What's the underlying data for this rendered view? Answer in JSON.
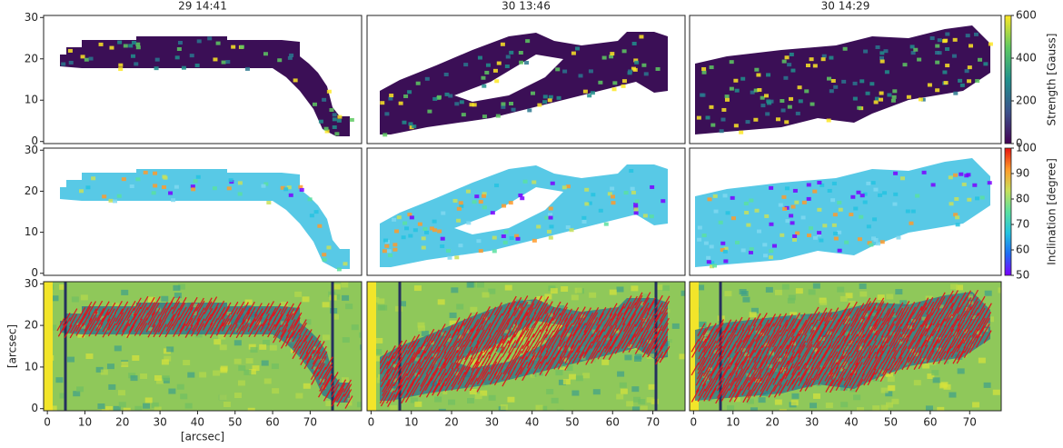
{
  "chart_data": [
    {
      "type": "heatmap",
      "title": "29 14:41",
      "ylim": [
        -0.5,
        30.5
      ],
      "yticks": [
        0,
        10,
        20,
        30
      ]
    },
    {
      "type": "heatmap",
      "title": "30 13:46"
    },
    {
      "type": "heatmap",
      "title": "30 14:29",
      "colorbar": {
        "label": "Strength [Gauss]",
        "lim": [
          0,
          600
        ],
        "ticks": [
          0,
          200,
          400,
          600
        ],
        "colors": [
          "#440154",
          "#3b528b",
          "#21918c",
          "#5ec962",
          "#fde725"
        ]
      }
    },
    {
      "type": "heatmap",
      "ylim": [
        -0.5,
        30.5
      ],
      "yticks": [
        0,
        10,
        20,
        30
      ]
    },
    {
      "type": "heatmap"
    },
    {
      "type": "heatmap",
      "colorbar": {
        "label": "Inclination [degree]",
        "lim": [
          50,
          100
        ],
        "ticks": [
          50,
          60,
          70,
          80,
          90,
          100
        ],
        "colors": [
          "#7b00ff",
          "#1f6cf5",
          "#24c3e0",
          "#5ae0a0",
          "#c8e05a",
          "#ff9a2a",
          "#e8140f"
        ]
      }
    },
    {
      "type": "heatmap",
      "ylabel": "[arcsec]",
      "xlabel": "[arcsec]",
      "ylim": [
        -0.5,
        30.5
      ],
      "yticks": [
        0,
        10,
        20,
        30
      ],
      "xlim": [
        -1,
        83.7
      ],
      "xticks": [
        0,
        10,
        20,
        30,
        40,
        50,
        60,
        70
      ]
    },
    {
      "type": "heatmap",
      "xlim": [
        -1,
        78
      ],
      "xticks": [
        0,
        10,
        20,
        30,
        40,
        50,
        60,
        70
      ]
    },
    {
      "type": "heatmap",
      "xlim": [
        -1,
        78
      ],
      "xticks": [
        0,
        10,
        20,
        30,
        40,
        50,
        60,
        70
      ]
    }
  ]
}
